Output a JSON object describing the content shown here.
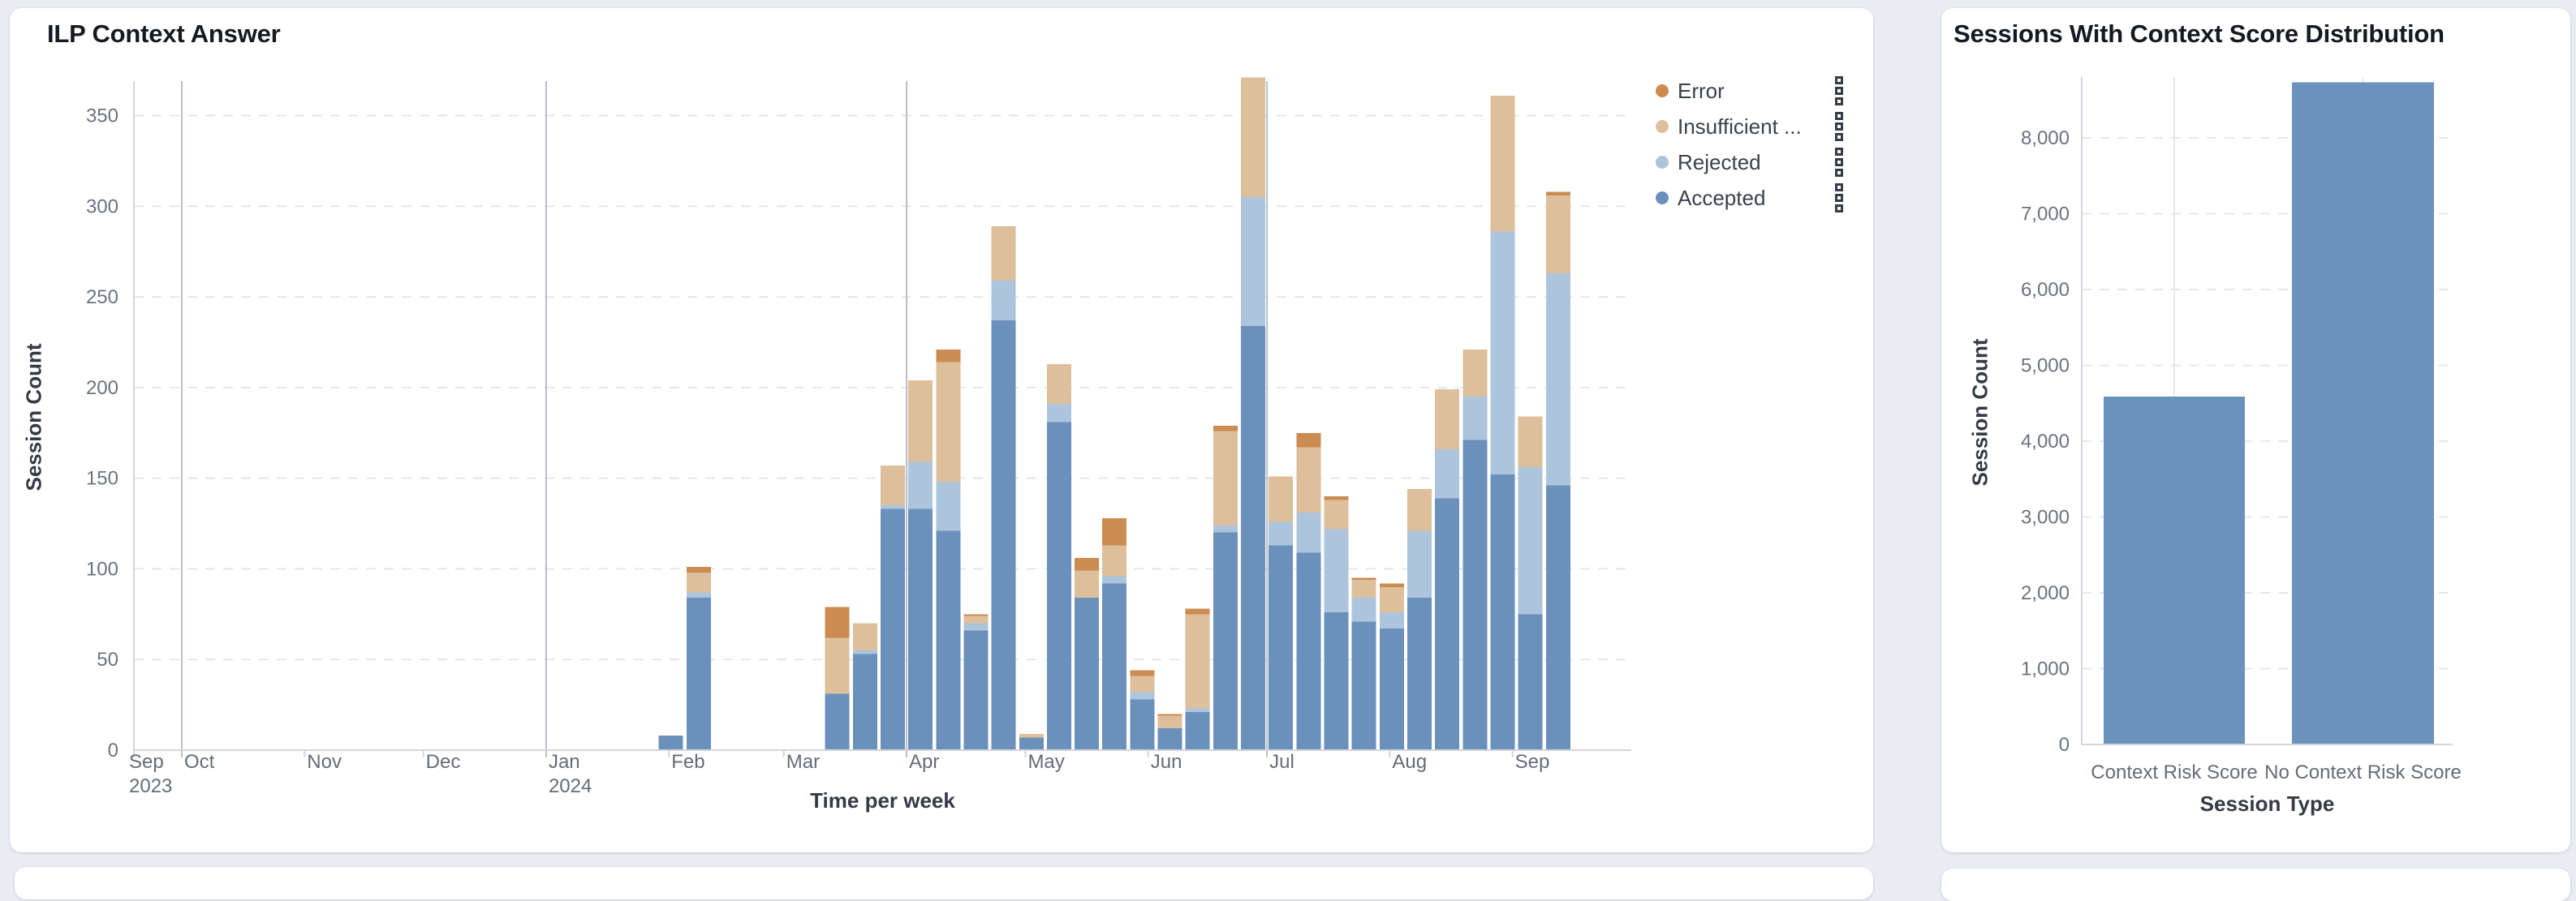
{
  "colors": {
    "accepted": "#6b90bb",
    "rejected": "#adc4dd",
    "insufficient": "#ddbf9c",
    "error": "#cb8b51",
    "dist_bar": "#6b91bd",
    "grid_dashed": "#e4e7ec",
    "axis_line": "#d2d6dc",
    "quarter_line": "#b9bec7",
    "category_line": "#e7eaef",
    "tick_text": "#6b7280",
    "month_text": "#646c79",
    "page_bg": "#e9ecf2",
    "card_bg": "#ffffff"
  },
  "left_card": {
    "title": "ILP Context Answer",
    "y_axis_title": "Session Count",
    "x_axis_title": "Time per week"
  },
  "right_card": {
    "title": "Sessions With Context Score Distribution",
    "y_axis_title": "Session Count",
    "x_axis_title": "Session Type"
  },
  "chart_data": [
    {
      "type": "bar",
      "stacked": true,
      "title": "ILP Context Answer",
      "xlabel": "Time per week",
      "ylabel": "Session Count",
      "ylim": [
        0,
        350
      ],
      "y_ticks": [
        0,
        50,
        100,
        150,
        200,
        250,
        300,
        350
      ],
      "x_tick_labels": [
        "Sep 2023",
        "Oct",
        "Nov",
        "Dec",
        "Jan 2024",
        "Feb",
        "Mar",
        "Apr",
        "May",
        "Jun",
        "Jul",
        "Aug",
        "Sep"
      ],
      "x_axis_type": "time-weekly",
      "x_range": [
        "2023-09-19",
        "2024-10-01"
      ],
      "grid": {
        "horizontal": "dashed",
        "vertical_quarter_lines": [
          "Oct 2023",
          "Jan 2024",
          "Apr 2024",
          "Jul 2024"
        ]
      },
      "legend_position": "right",
      "series": [
        {
          "key": "error",
          "label": "Error",
          "color": "#cb8b51"
        },
        {
          "key": "insufficient",
          "label": "Insufficient ...",
          "color": "#ddbf9c"
        },
        {
          "key": "rejected",
          "label": "Rejected",
          "color": "#adc4dd"
        },
        {
          "key": "accepted",
          "label": "Accepted",
          "color": "#6b90bb"
        }
      ],
      "stack_order_bottom_to_top": [
        "accepted",
        "rejected",
        "insufficient",
        "error"
      ],
      "weeks": [
        {
          "week_of": "2024-01-29",
          "accepted": 8,
          "rejected": 0,
          "insufficient": 0,
          "error": 0
        },
        {
          "week_of": "2024-02-05",
          "accepted": 84,
          "rejected": 3,
          "insufficient": 11,
          "error": 3
        },
        {
          "week_of": "2024-03-11",
          "accepted": 31,
          "rejected": 0,
          "insufficient": 31,
          "error": 17
        },
        {
          "week_of": "2024-03-18",
          "accepted": 53,
          "rejected": 2,
          "insufficient": 15,
          "error": 0
        },
        {
          "week_of": "2024-03-25",
          "accepted": 133,
          "rejected": 2,
          "insufficient": 22,
          "error": 0
        },
        {
          "week_of": "2024-04-01",
          "accepted": 133,
          "rejected": 26,
          "insufficient": 45,
          "error": 0
        },
        {
          "week_of": "2024-04-08",
          "accepted": 121,
          "rejected": 27,
          "insufficient": 66,
          "error": 7
        },
        {
          "week_of": "2024-04-15",
          "accepted": 66,
          "rejected": 4,
          "insufficient": 4,
          "error": 1
        },
        {
          "week_of": "2024-04-22",
          "accepted": 237,
          "rejected": 22,
          "insufficient": 30,
          "error": 0
        },
        {
          "week_of": "2024-04-29",
          "accepted": 7,
          "rejected": 0,
          "insufficient": 2,
          "error": 0
        },
        {
          "week_of": "2024-05-06",
          "accepted": 181,
          "rejected": 10,
          "insufficient": 22,
          "error": 0
        },
        {
          "week_of": "2024-05-13",
          "accepted": 84,
          "rejected": 0,
          "insufficient": 15,
          "error": 7
        },
        {
          "week_of": "2024-05-20",
          "accepted": 92,
          "rejected": 4,
          "insufficient": 17,
          "error": 15
        },
        {
          "week_of": "2024-05-27",
          "accepted": 28,
          "rejected": 4,
          "insufficient": 9,
          "error": 3
        },
        {
          "week_of": "2024-06-03",
          "accepted": 12,
          "rejected": 0,
          "insufficient": 7,
          "error": 1
        },
        {
          "week_of": "2024-06-10",
          "accepted": 21,
          "rejected": 2,
          "insufficient": 52,
          "error": 3
        },
        {
          "week_of": "2024-06-17",
          "accepted": 120,
          "rejected": 4,
          "insufficient": 52,
          "error": 3
        },
        {
          "week_of": "2024-06-24",
          "accepted": 234,
          "rejected": 71,
          "insufficient": 66,
          "error": 0
        },
        {
          "week_of": "2024-07-01",
          "accepted": 113,
          "rejected": 13,
          "insufficient": 25,
          "error": 0
        },
        {
          "week_of": "2024-07-08",
          "accepted": 109,
          "rejected": 22,
          "insufficient": 36,
          "error": 8
        },
        {
          "week_of": "2024-07-15",
          "accepted": 76,
          "rejected": 46,
          "insufficient": 16,
          "error": 2
        },
        {
          "week_of": "2024-07-22",
          "accepted": 71,
          "rejected": 13,
          "insufficient": 10,
          "error": 1
        },
        {
          "week_of": "2024-07-29",
          "accepted": 67,
          "rejected": 9,
          "insufficient": 14,
          "error": 2
        },
        {
          "week_of": "2024-08-05",
          "accepted": 84,
          "rejected": 37,
          "insufficient": 23,
          "error": 0
        },
        {
          "week_of": "2024-08-12",
          "accepted": 139,
          "rejected": 27,
          "insufficient": 33,
          "error": 0
        },
        {
          "week_of": "2024-08-19",
          "accepted": 171,
          "rejected": 24,
          "insufficient": 26,
          "error": 0
        },
        {
          "week_of": "2024-08-26",
          "accepted": 152,
          "rejected": 134,
          "insufficient": 75,
          "error": 0
        },
        {
          "week_of": "2024-09-02",
          "accepted": 75,
          "rejected": 81,
          "insufficient": 28,
          "error": 0
        },
        {
          "week_of": "2024-09-09",
          "accepted": 146,
          "rejected": 117,
          "insufficient": 43,
          "error": 2
        }
      ]
    },
    {
      "type": "bar",
      "title": "Sessions With Context Score Distribution",
      "categories": [
        "Context Risk Score",
        "No Context Risk Score"
      ],
      "values": [
        4590,
        8730
      ],
      "xlabel": "Session Type",
      "ylabel": "Session Count",
      "ylim": [
        0,
        8800
      ],
      "y_ticks": [
        0,
        1000,
        2000,
        3000,
        4000,
        5000,
        6000,
        7000,
        8000
      ],
      "grid": {
        "horizontal": "dashed"
      },
      "bar_color": "#6b91bd"
    }
  ]
}
